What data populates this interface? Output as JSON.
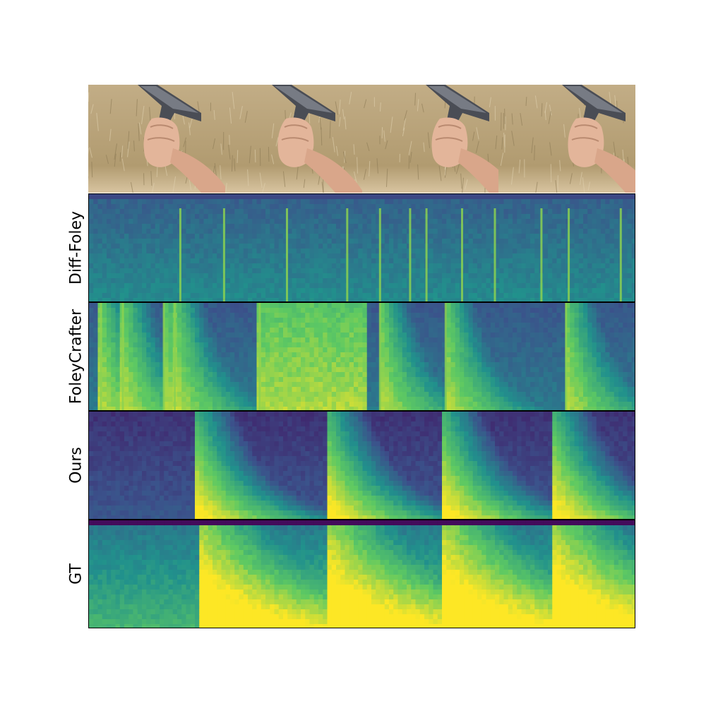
{
  "figure": {
    "video_frames": [
      {
        "caption": "",
        "icon": "pistol-frame"
      },
      {
        "caption": "",
        "icon": "pistol-frame"
      },
      {
        "caption": "",
        "icon": "pistol-frame"
      },
      {
        "caption": "",
        "icon": "pistol-frame"
      }
    ],
    "rows": [
      {
        "label": "Diff-Foley",
        "onsets": [
          0.165,
          0.245,
          0.36,
          0.47,
          0.53,
          0.585,
          0.615,
          0.68,
          0.74,
          0.825,
          0.875,
          0.97
        ],
        "style": "striped"
      },
      {
        "label": "FoleyCrafter",
        "onsets": [
          0.02,
          0.06,
          0.135,
          0.155,
          0.31,
          0.53,
          0.65,
          0.87
        ],
        "style": "mixed"
      },
      {
        "label": "Ours",
        "onsets": [
          0.195,
          0.437,
          0.648,
          0.85
        ],
        "style": "decay"
      },
      {
        "label": "GT",
        "onsets": [
          0.2,
          0.437,
          0.648,
          0.85
        ],
        "style": "dense"
      }
    ]
  },
  "colors": {
    "viridis_dark": "#440154",
    "viridis_blue": "#3b528b",
    "viridis_teal": "#21918c",
    "viridis_green": "#5ec962",
    "viridis_yellow": "#fde725"
  }
}
